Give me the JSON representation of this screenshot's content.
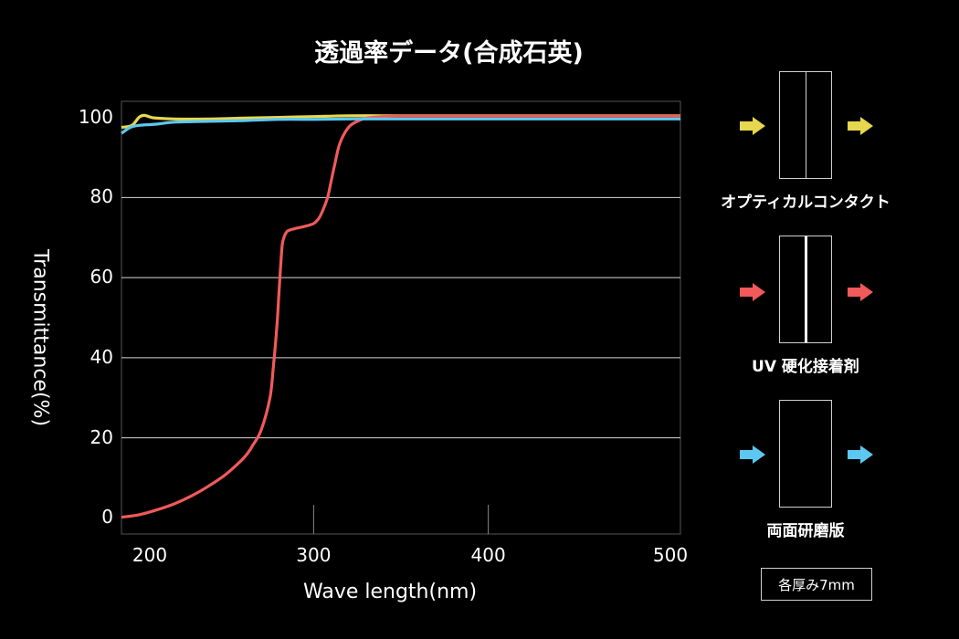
{
  "title": "透過率データ(合成石英)",
  "chart_data": {
    "type": "line",
    "xlabel": "Wave length(nm)",
    "ylabel": "Transmittance(%)",
    "xlim": [
      190,
      510
    ],
    "ylim": [
      -4,
      104
    ],
    "x_ticks": [
      "200",
      "300",
      "400",
      "500"
    ],
    "y_ticks": [
      "0",
      "20",
      "40",
      "60",
      "80",
      "100"
    ],
    "grid": "horizontal",
    "series": [
      {
        "name": "オプティカルコンタクト",
        "color": "#e6d74f",
        "x": [
          190,
          196,
          200,
          203,
          207,
          210,
          220,
          240,
          260,
          280,
          300,
          320,
          340,
          360,
          380,
          400,
          420,
          440,
          460,
          480,
          500,
          510
        ],
        "y": [
          97.5,
          98,
          100,
          100.5,
          100,
          99.8,
          99.6,
          99.6,
          99.8,
          100,
          100.2,
          100.4,
          100.4,
          100.4,
          100.4,
          100.4,
          100.4,
          100.4,
          100.4,
          100.4,
          100.4,
          100.4
        ]
      },
      {
        "name": "UV 硬化接着剤",
        "color": "#f05a5a",
        "x": [
          190,
          200,
          210,
          220,
          230,
          240,
          250,
          260,
          265,
          270,
          275,
          277,
          279,
          280,
          281,
          282,
          283,
          285,
          290,
          295,
          300,
          303,
          305,
          308,
          310,
          312,
          315,
          320,
          325,
          330,
          340,
          350,
          400,
          450,
          500,
          510
        ],
        "y": [
          0.2,
          0.8,
          2,
          3.5,
          5.5,
          8,
          11,
          15,
          18,
          22,
          30,
          38,
          48,
          55,
          62,
          68,
          70,
          71.6,
          72.3,
          72.8,
          73.5,
          74.8,
          76.5,
          80,
          84,
          88,
          93.5,
          97.5,
          99,
          99.8,
          100.2,
          100.3,
          100.3,
          100.3,
          100.3,
          100.3
        ]
      },
      {
        "name": "両面研磨版",
        "color": "#5cc8f2",
        "x": [
          190,
          195,
          200,
          210,
          220,
          240,
          260,
          280,
          300,
          320,
          340,
          360,
          400,
          450,
          500,
          510
        ],
        "y": [
          96,
          97.5,
          98,
          98.3,
          98.8,
          99,
          99.2,
          99.5,
          99.5,
          99.6,
          99.6,
          99.6,
          99.6,
          99.6,
          99.6,
          99.6
        ]
      }
    ]
  },
  "samples": [
    {
      "label": "オプティカルコンタクト",
      "arrow_color": "#e6d74f",
      "type": "contact"
    },
    {
      "label": "UV 硬化接着剤",
      "arrow_color": "#f05a5a",
      "type": "adhesive"
    },
    {
      "label": "両面研磨版",
      "arrow_color": "#5cc8f2",
      "type": "plain"
    }
  ],
  "note": "各厚み7mm"
}
